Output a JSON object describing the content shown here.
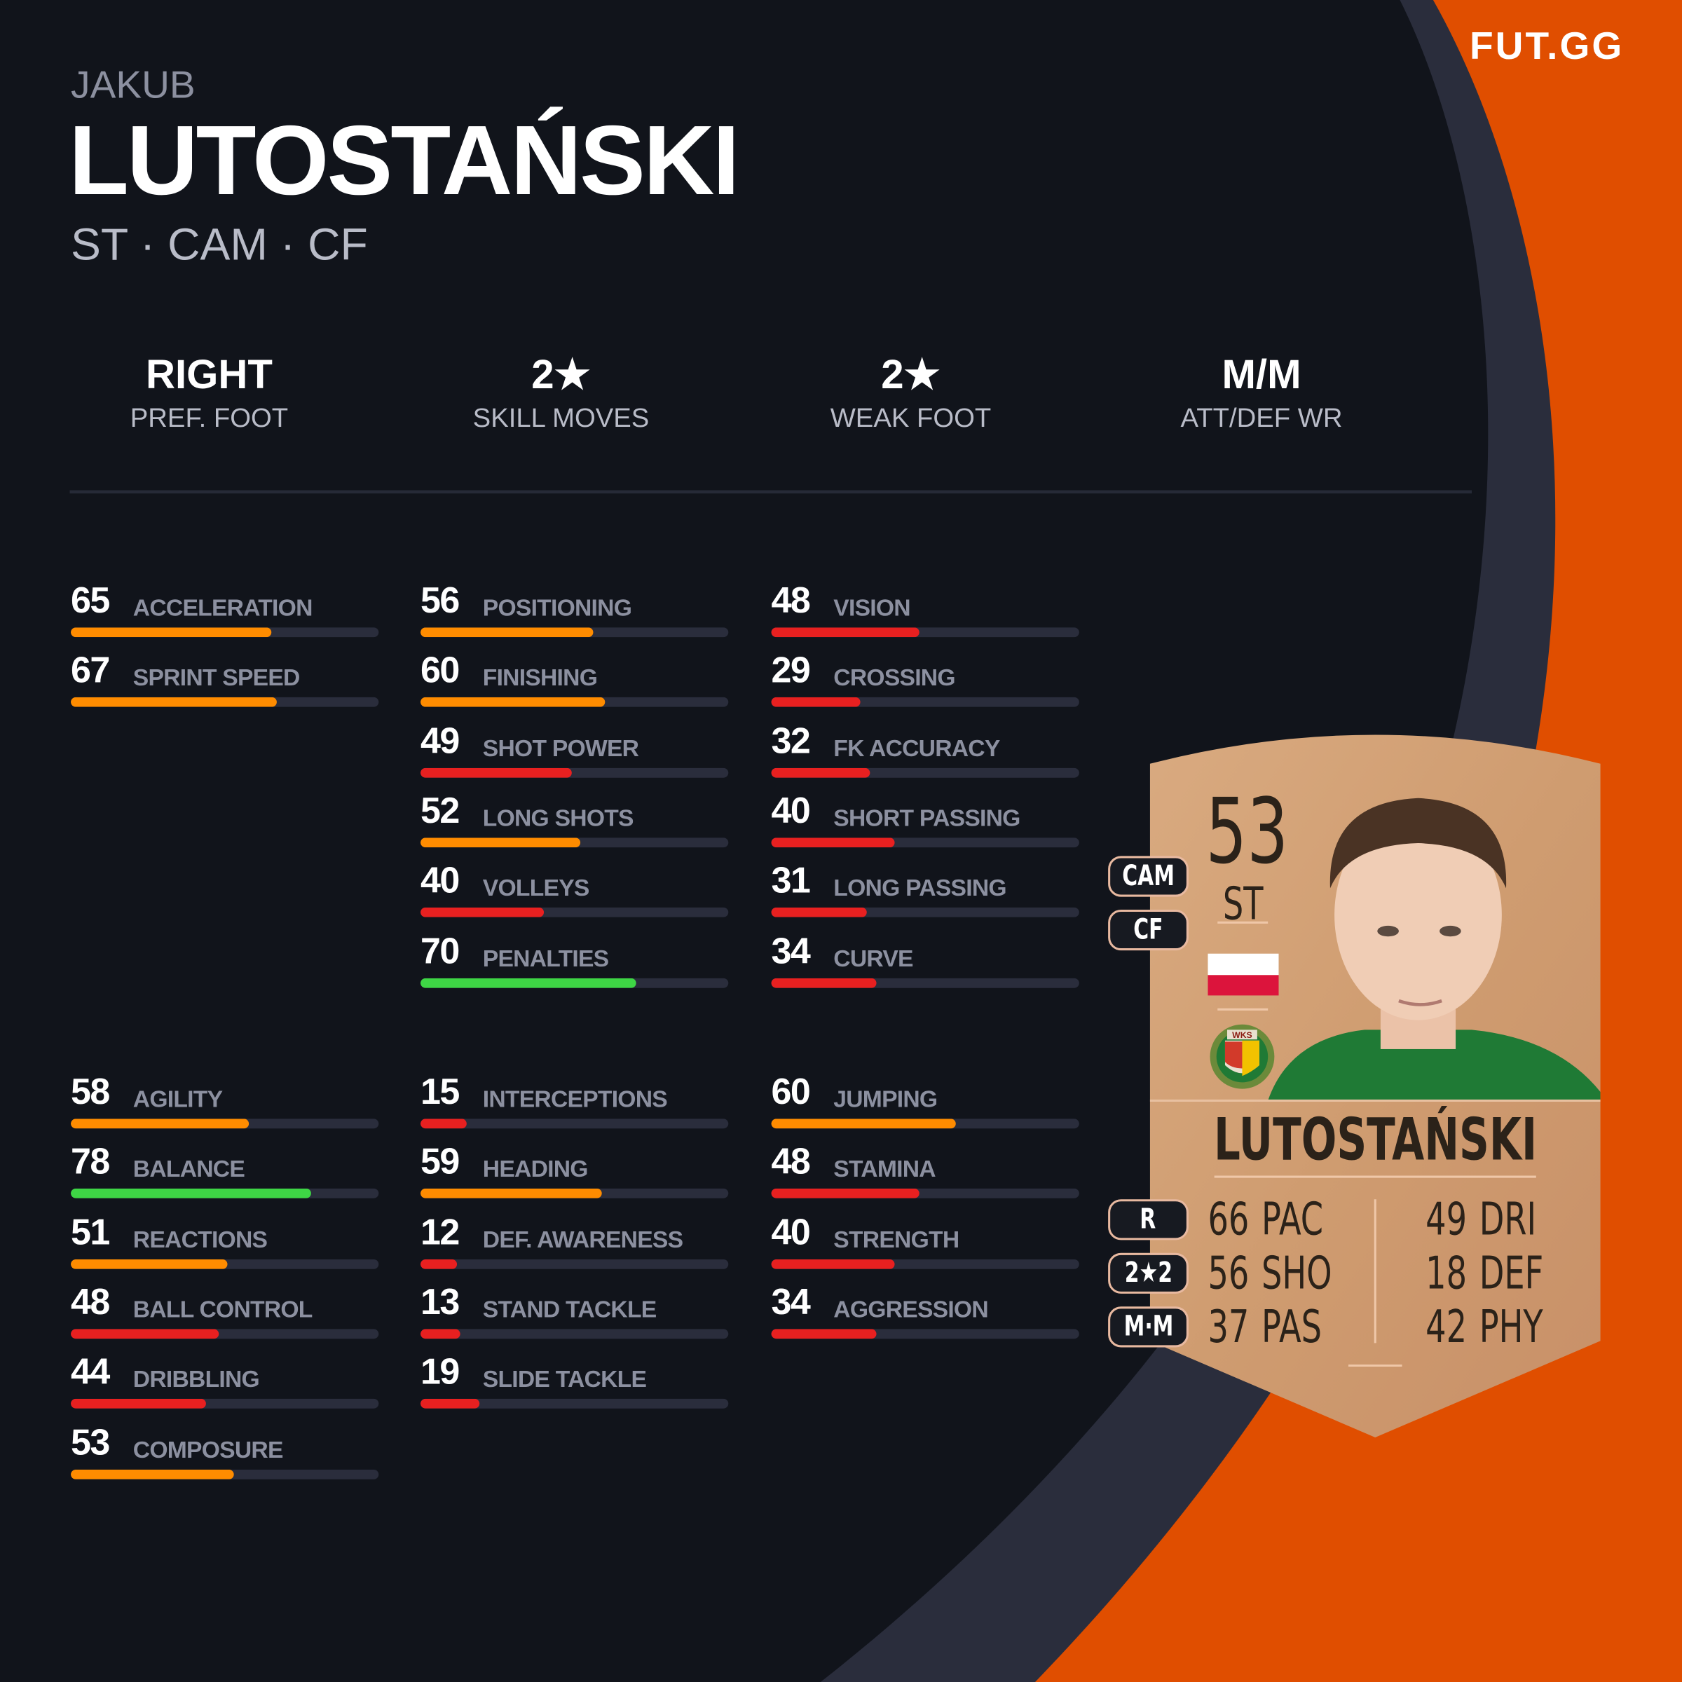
{
  "brand": {
    "logo_text": "FUT.GG",
    "accent": "#e04e00",
    "background": "#11141b",
    "band": "#2a2d3c"
  },
  "player": {
    "first_name": "JAKUB",
    "last_name": "LUTOSTAŃSKI",
    "positions": "ST · CAM · CF"
  },
  "traits": [
    {
      "value": "RIGHT",
      "label": "PREF. FOOT"
    },
    {
      "value": "2★",
      "label": "SKILL MOVES"
    },
    {
      "value": "2★",
      "label": "WEAK FOOT"
    },
    {
      "value": "M/M",
      "label": "ATT/DEF WR"
    }
  ],
  "bar_colors": {
    "low": "#e82020",
    "mid": "#ff8c00",
    "high": "#3ed645"
  },
  "stat_groups": [
    [
      [
        {
          "value": 65,
          "label": "ACCELERATION"
        },
        {
          "value": 67,
          "label": "SPRINT SPEED"
        }
      ],
      [
        {
          "value": 56,
          "label": "POSITIONING"
        },
        {
          "value": 60,
          "label": "FINISHING"
        },
        {
          "value": 49,
          "label": "SHOT POWER"
        },
        {
          "value": 52,
          "label": "LONG SHOTS"
        },
        {
          "value": 40,
          "label": "VOLLEYS"
        },
        {
          "value": 70,
          "label": "PENALTIES"
        }
      ],
      [
        {
          "value": 48,
          "label": "VISION"
        },
        {
          "value": 29,
          "label": "CROSSING"
        },
        {
          "value": 32,
          "label": "FK ACCURACY"
        },
        {
          "value": 40,
          "label": "SHORT PASSING"
        },
        {
          "value": 31,
          "label": "LONG PASSING"
        },
        {
          "value": 34,
          "label": "CURVE"
        }
      ]
    ],
    [
      [
        {
          "value": 58,
          "label": "AGILITY"
        },
        {
          "value": 78,
          "label": "BALANCE"
        },
        {
          "value": 51,
          "label": "REACTIONS"
        },
        {
          "value": 48,
          "label": "BALL CONTROL"
        },
        {
          "value": 44,
          "label": "DRIBBLING"
        },
        {
          "value": 53,
          "label": "COMPOSURE"
        }
      ],
      [
        {
          "value": 15,
          "label": "INTERCEPTIONS"
        },
        {
          "value": 59,
          "label": "HEADING"
        },
        {
          "value": 12,
          "label": "DEF. AWARENESS"
        },
        {
          "value": 13,
          "label": "STAND TACKLE"
        },
        {
          "value": 19,
          "label": "SLIDE TACKLE"
        }
      ],
      [
        {
          "value": 60,
          "label": "JUMPING"
        },
        {
          "value": 48,
          "label": "STAMINA"
        },
        {
          "value": 40,
          "label": "STRENGTH"
        },
        {
          "value": 34,
          "label": "AGGRESSION"
        }
      ]
    ]
  ],
  "card": {
    "rating": "53",
    "position": "ST",
    "alt_positions": [
      "CAM",
      "CF"
    ],
    "name": "LUTOSTAŃSKI",
    "nation": "Poland",
    "club_crest_text": "WKS",
    "foot": "R",
    "skills_weakfoot": "2★2",
    "workrates": "M·M",
    "left_stats": [
      {
        "value": "66",
        "label": "PAC"
      },
      {
        "value": "56",
        "label": "SHO"
      },
      {
        "value": "37",
        "label": "PAS"
      }
    ],
    "right_stats": [
      {
        "value": "49",
        "label": "DRI"
      },
      {
        "value": "18",
        "label": "DEF"
      },
      {
        "value": "42",
        "label": "PHY"
      }
    ]
  }
}
